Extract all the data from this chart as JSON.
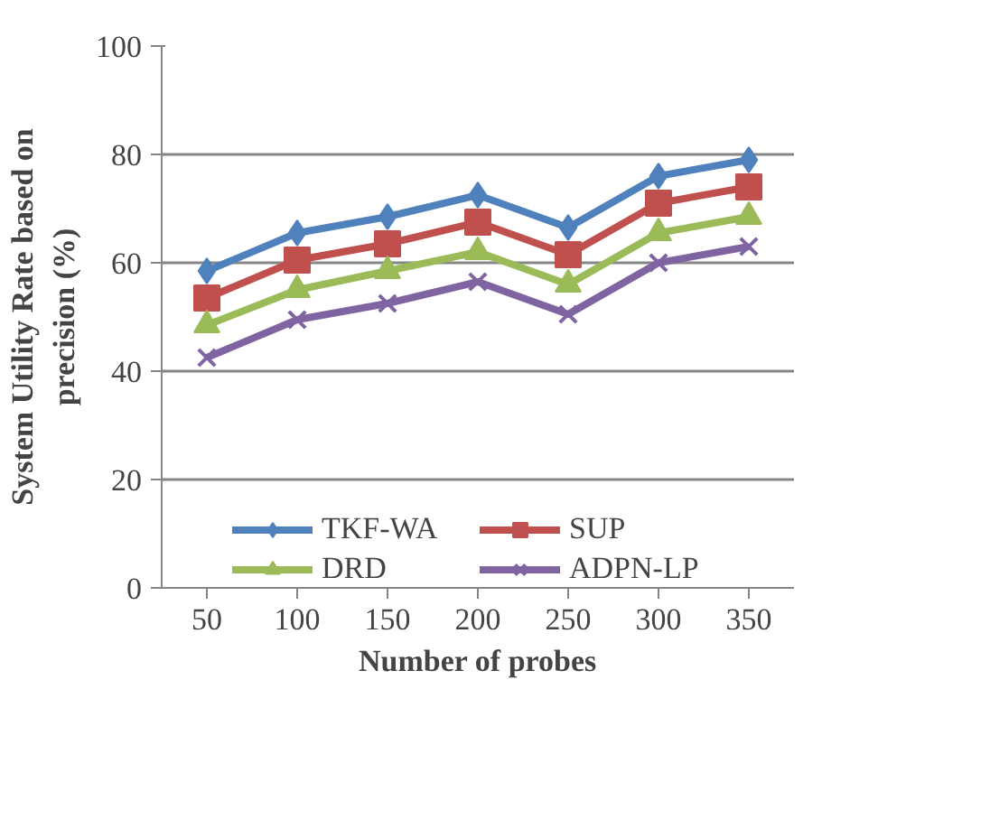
{
  "chart_data": {
    "type": "line",
    "xlabel": "Number of probes",
    "ylabel": "System Utility Rate based on\nprecision (%)",
    "categories": [
      "50",
      "100",
      "150",
      "200",
      "250",
      "300",
      "350"
    ],
    "ylim": [
      0,
      100
    ],
    "yticks": [
      0,
      20,
      40,
      60,
      80,
      100
    ],
    "grid": "y",
    "legend": "bottom",
    "line_style": "solid",
    "series": [
      {
        "name": "TKF-WA",
        "color": "#4f81bd",
        "marker": "diamond",
        "values": [
          58.5,
          65.5,
          68.5,
          72.5,
          66.5,
          76,
          79
        ]
      },
      {
        "name": "SUP",
        "color": "#c0504d",
        "marker": "square",
        "values": [
          53.5,
          60.5,
          63.5,
          67.5,
          61.5,
          71,
          74
        ]
      },
      {
        "name": "DRD",
        "color": "#9bbb59",
        "marker": "triangle",
        "values": [
          48.5,
          55,
          58.5,
          62,
          56,
          65.5,
          68.5
        ]
      },
      {
        "name": "ADPN-LP",
        "color": "#8064a2",
        "marker": "cross",
        "values": [
          42.5,
          49.5,
          52.5,
          56.5,
          50.5,
          60,
          63
        ]
      }
    ]
  }
}
